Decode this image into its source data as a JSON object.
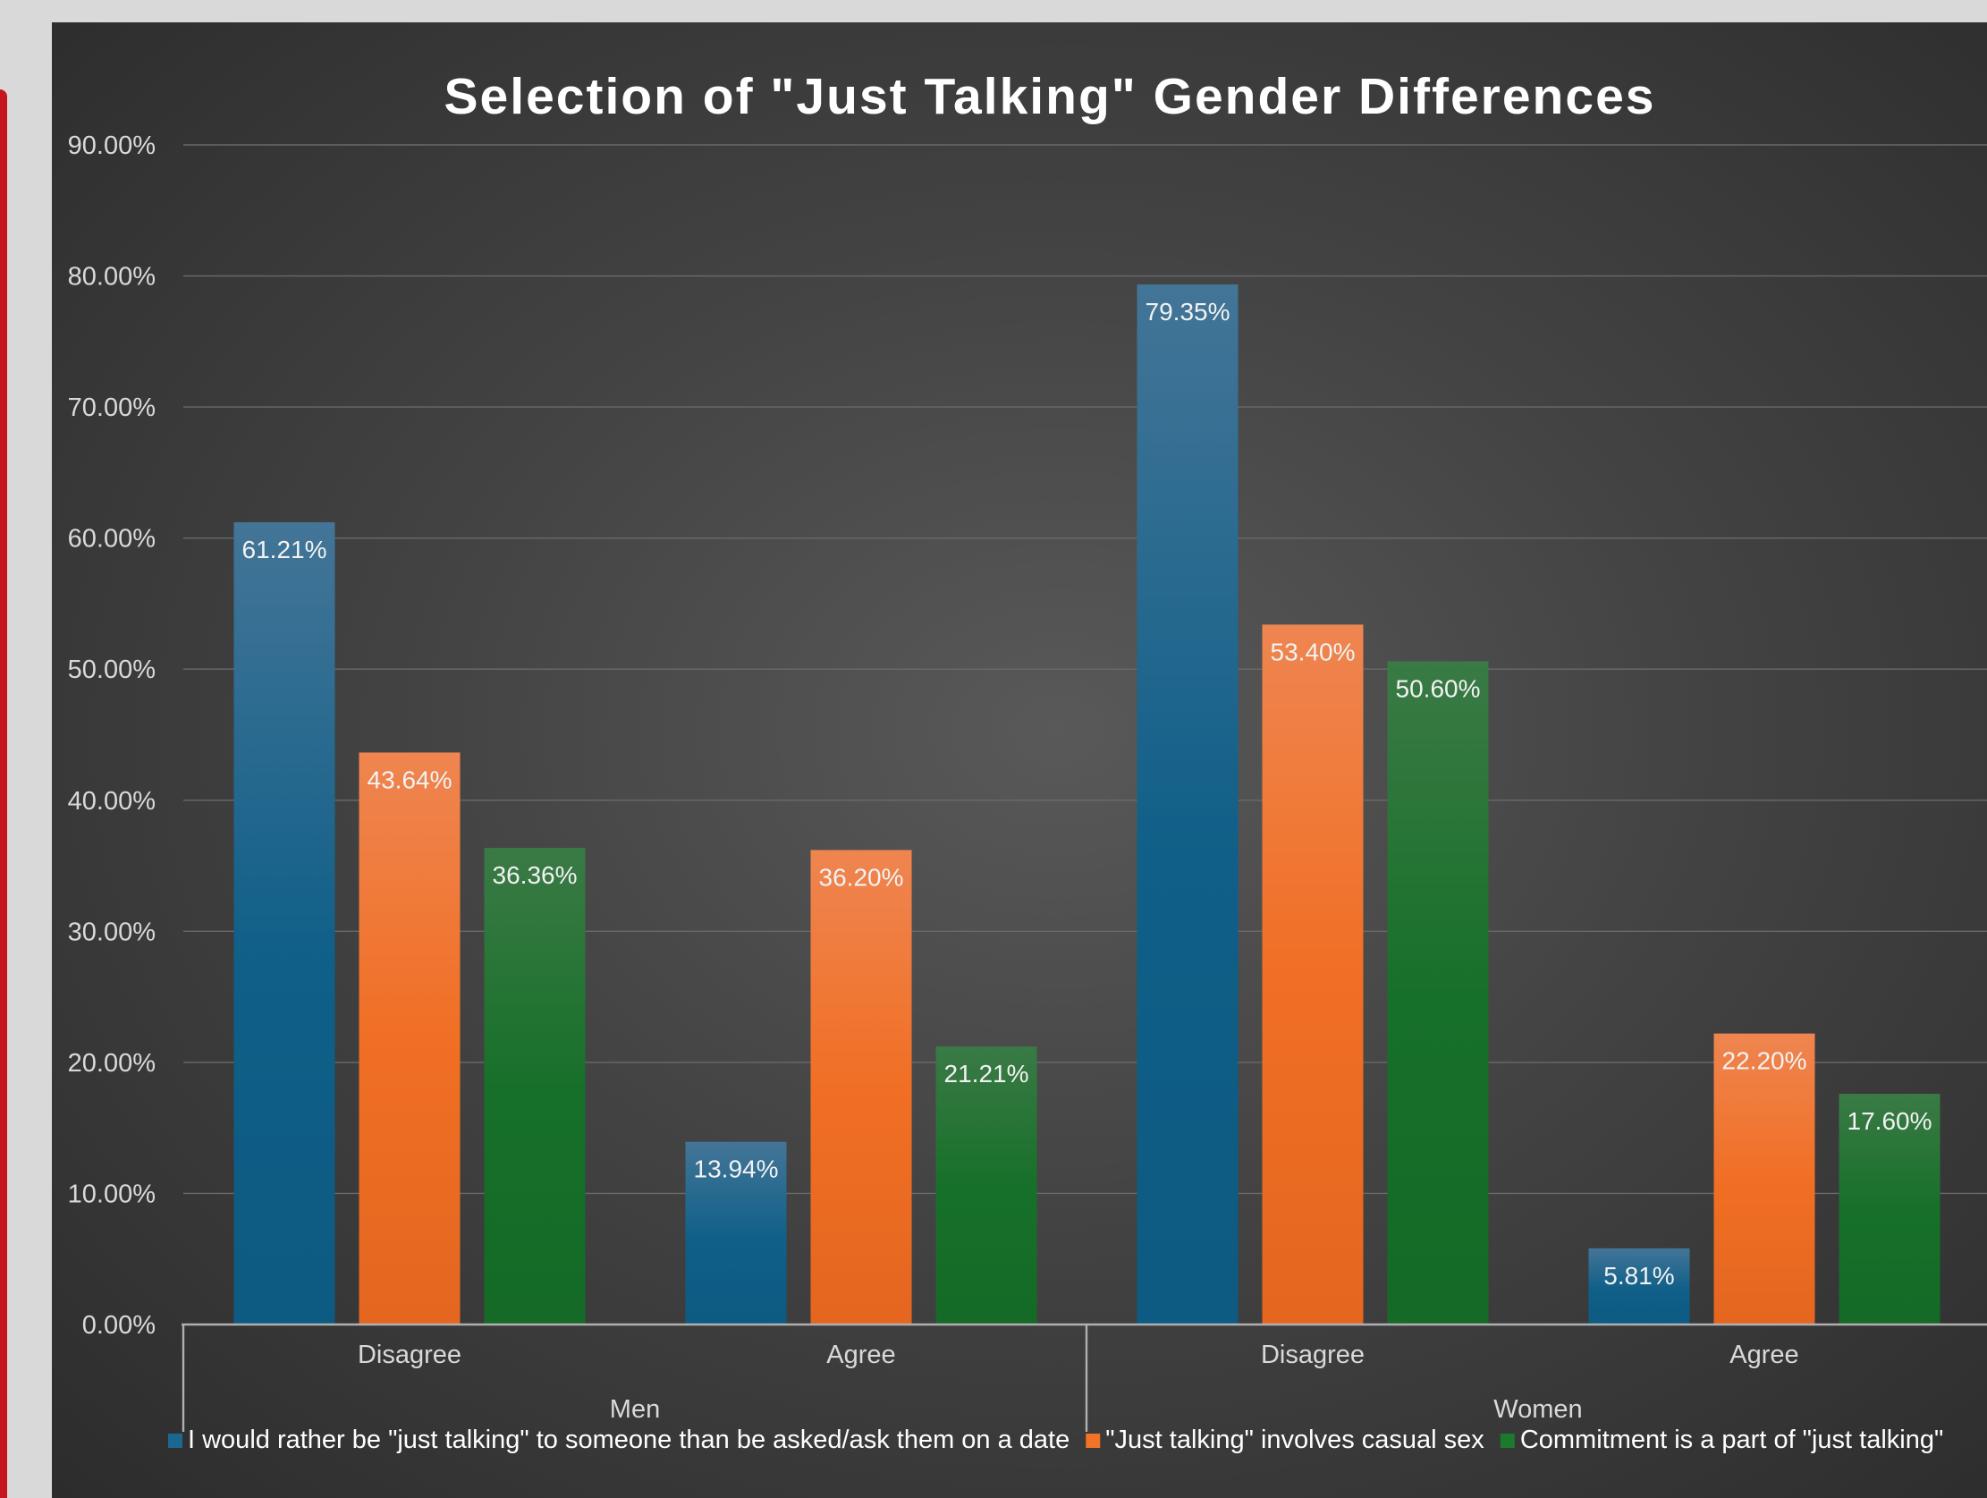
{
  "colors": {
    "panel_bg": "#404040",
    "series_blue": "#1a6891",
    "series_orange": "#f07328",
    "series_green": "#1c7a2c",
    "text": "#d9d9d9"
  },
  "chart_data": {
    "type": "bar",
    "title": "Selection of \"Just Talking\" Gender Differences",
    "xlabel": "",
    "ylabel": "",
    "ylim": [
      0,
      90
    ],
    "y_ticks": [
      "0.00%",
      "10.00%",
      "20.00%",
      "30.00%",
      "40.00%",
      "50.00%",
      "60.00%",
      "70.00%",
      "80.00%",
      "90.00%"
    ],
    "groups": [
      {
        "label": "Men",
        "categories": [
          "Disagree",
          "Agree"
        ]
      },
      {
        "label": "Women",
        "categories": [
          "Disagree",
          "Agree"
        ]
      }
    ],
    "categories": [
      "Disagree",
      "Agree",
      "Disagree",
      "Agree"
    ],
    "series": [
      {
        "name": "I would rather be \"just talking\" to someone than be asked/ask them on a date",
        "color": "#1a6891",
        "values": [
          61.21,
          13.94,
          79.35,
          5.81
        ],
        "labels": [
          "61.21%",
          "13.94%",
          "79.35%",
          "5.81%"
        ]
      },
      {
        "name": "\"Just talking\" involves casual sex",
        "color": "#f07328",
        "values": [
          43.64,
          36.2,
          53.4,
          22.2
        ],
        "labels": [
          "43.64%",
          "36.20%",
          "53.40%",
          "22.20%"
        ]
      },
      {
        "name": "Commitment is a part of \"just talking\"",
        "color": "#1c7a2c",
        "values": [
          36.36,
          21.21,
          50.6,
          17.6
        ],
        "labels": [
          "36.36%",
          "21.21%",
          "50.60%",
          "17.60%"
        ]
      }
    ],
    "grid": true,
    "legend_position": "bottom"
  }
}
